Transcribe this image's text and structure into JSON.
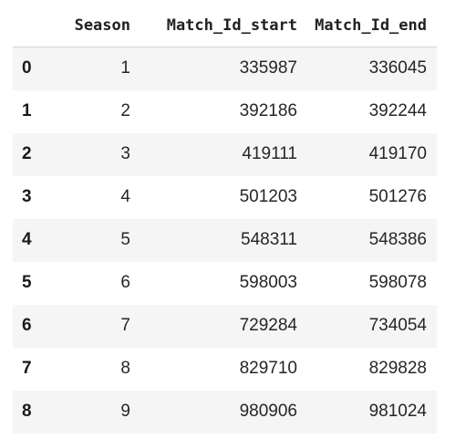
{
  "table": {
    "headers": [
      "",
      "Season",
      "Match_Id_start",
      "Match_Id_end"
    ],
    "rows": [
      {
        "index": "0",
        "season": "1",
        "start": "335987",
        "end": "336045"
      },
      {
        "index": "1",
        "season": "2",
        "start": "392186",
        "end": "392244"
      },
      {
        "index": "2",
        "season": "3",
        "start": "419111",
        "end": "419170"
      },
      {
        "index": "3",
        "season": "4",
        "start": "501203",
        "end": "501276"
      },
      {
        "index": "4",
        "season": "5",
        "start": "548311",
        "end": "548386"
      },
      {
        "index": "5",
        "season": "6",
        "start": "598003",
        "end": "598078"
      },
      {
        "index": "6",
        "season": "7",
        "start": "729284",
        "end": "734054"
      },
      {
        "index": "7",
        "season": "8",
        "start": "829710",
        "end": "829828"
      },
      {
        "index": "8",
        "season": "9",
        "start": "980906",
        "end": "981024"
      }
    ]
  },
  "colors": {
    "stripe": "#f5f5f5",
    "background": "#ffffff",
    "header_rule": "#d4d4d4"
  }
}
